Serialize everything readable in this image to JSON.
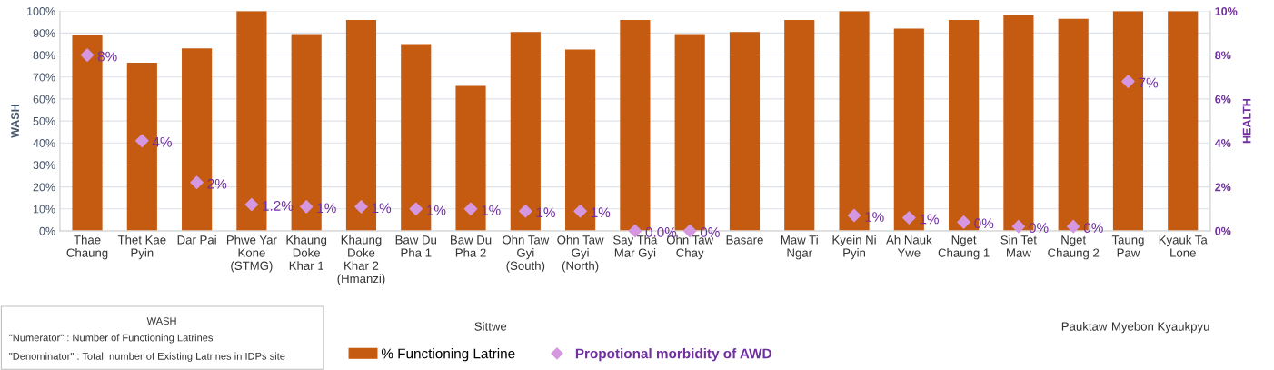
{
  "chart_data": {
    "type": "bar",
    "ylabel": "WASH",
    "y2label": "HEALTH",
    "categories": [
      "Thae\nChaung",
      "Thet Kae\nPyin",
      "Dar Pai",
      "Phwe Yar\nKone\n(STMG)",
      "Khaung\nDoke\nKhar 1",
      "Khaung\nDoke\nKhar 2\n(Hmanzi)",
      "Baw Du\nPha 1",
      "Baw Du\nPha 2",
      "Ohn Taw\nGyi\n(South)",
      "Ohn Taw\nGyi\n(North)",
      "Say Tha\nMar Gyi",
      "Ohn Taw\nChay",
      "Basare",
      "Maw Ti\nNgar",
      "Kyein Ni\nPyin",
      "Ah Nauk\nYwe",
      "Nget\nChaung 1",
      "Sin Tet\nMaw",
      "Nget\nChaung 2",
      "Taung\nPaw",
      "Kyauk Ta\nLone"
    ],
    "series": [
      {
        "name": "% Functioning Latrine",
        "color": "#c55a11",
        "values": [
          89,
          76.5,
          83,
          100,
          89.5,
          96,
          85,
          66,
          90.5,
          82.5,
          96,
          89.5,
          90.5,
          96,
          100,
          92,
          96,
          98,
          96.5,
          100,
          100
        ]
      },
      {
        "name": "Propotional morbidity of AWD",
        "type": "scatter",
        "axis": "y2",
        "color": "#d597e0",
        "marker": "diamond",
        "values": [
          8.0,
          4.1,
          2.2,
          1.2,
          1.1,
          1.1,
          1.0,
          1.0,
          0.9,
          0.9,
          0.0,
          0.0,
          null,
          null,
          0.7,
          0.6,
          0.4,
          0.2,
          0.2,
          6.8,
          null
        ],
        "value_labels": [
          "8%",
          "4%",
          "2%",
          "1.2%",
          "1%",
          "1%",
          "1%",
          "1%",
          "1%",
          "1%",
          "0.0%",
          "0%",
          null,
          null,
          "1%",
          "1%",
          "0%",
          "0%",
          "0%",
          "7%",
          null
        ]
      }
    ],
    "ylim": [
      0,
      100
    ],
    "yticks": [
      {
        "value": 0,
        "label": "0%"
      },
      {
        "value": 10,
        "label": "10%"
      },
      {
        "value": 20,
        "label": "20%"
      },
      {
        "value": 30,
        "label": "30%"
      },
      {
        "value": 40,
        "label": "40%"
      },
      {
        "value": 50,
        "label": "50%"
      },
      {
        "value": 60,
        "label": "60%"
      },
      {
        "value": 70,
        "label": "70%"
      },
      {
        "value": 80,
        "label": "80%"
      },
      {
        "value": 90,
        "label": "90%"
      },
      {
        "value": 100,
        "label": "100%"
      }
    ],
    "y2lim": [
      0,
      10
    ],
    "y2ticks": [
      {
        "value": 0,
        "label": "0%"
      },
      {
        "value": 2,
        "label": "2%"
      },
      {
        "value": 4,
        "label": "4%"
      },
      {
        "value": 6,
        "label": "6%"
      },
      {
        "value": 8,
        "label": "8%"
      },
      {
        "value": 10,
        "label": "10%"
      }
    ],
    "grid": "y",
    "legend": "bottom",
    "annotations": [
      "Sittwe",
      "Pauktaw",
      "Myebon",
      "Kyaukpyu",
      "WASH",
      "\"Numerator\" : Number of Functioning Latrines",
      "\"Denominator\" : Total  number of Existing Latrines in IDPs site"
    ]
  }
}
